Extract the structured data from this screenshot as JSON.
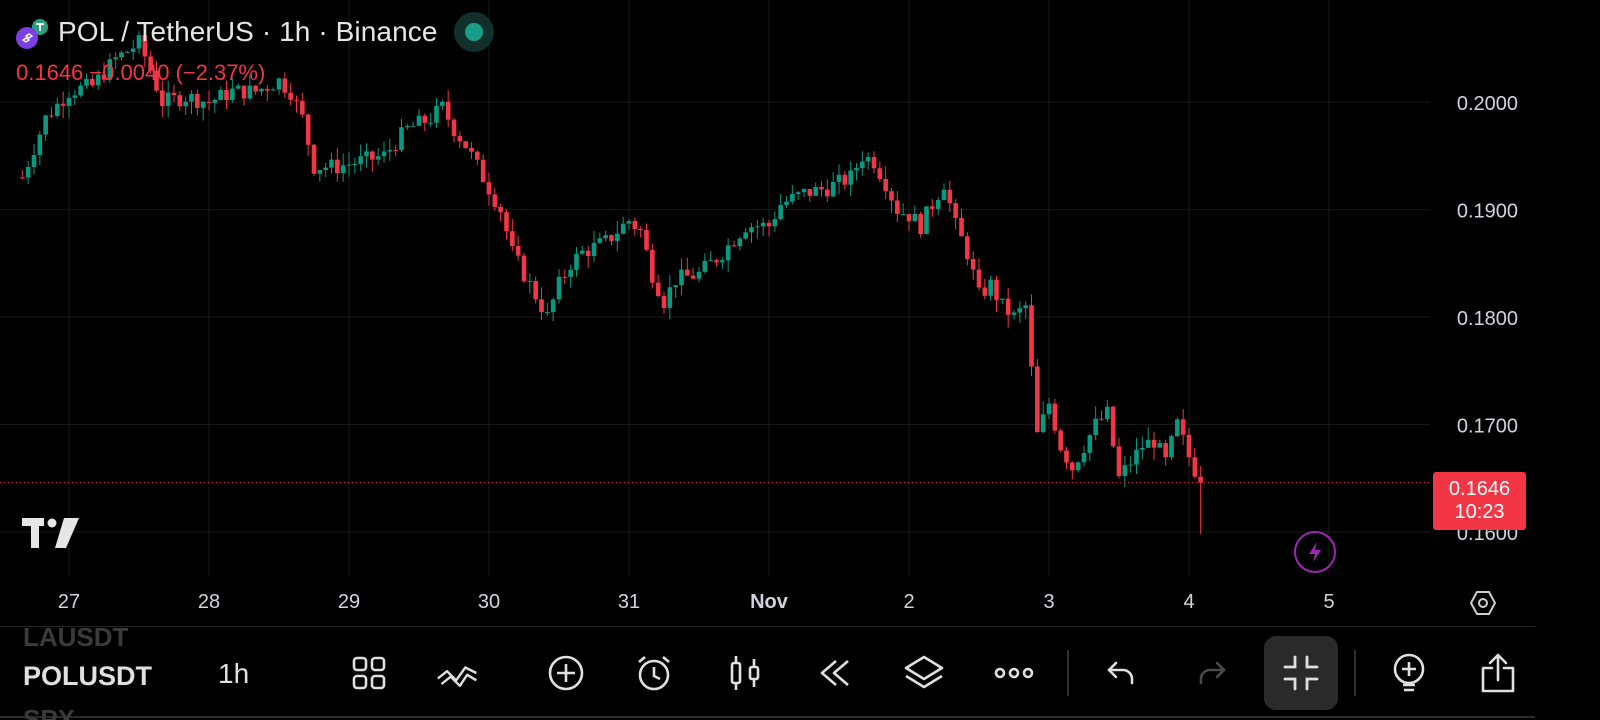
{
  "header": {
    "title": "POL / TetherUS · 1h · Binance",
    "live_status_icon": "live-dot-icon",
    "live_color": "#1a9e88"
  },
  "price_change": {
    "last": "0.1646",
    "change": "−0.0040",
    "change_pct": "(−2.37%)",
    "color": "#f23645"
  },
  "price_tag": {
    "price": "0.1646",
    "countdown": "10:23",
    "color": "#f23645"
  },
  "toolbar": {
    "symbol_prev": "LAUSDT",
    "symbol_current": "POLUSDT",
    "symbol_next": "SPX",
    "interval": "1h",
    "icons": [
      "grid-icon",
      "drawing-tools-icon",
      "add-indicator-icon",
      "alert-clock-icon",
      "candle-type-icon",
      "replay-icon",
      "layers-icon",
      "more-icon",
      "undo-icon",
      "redo-icon",
      "exit-fullscreen-icon",
      "idea-icon",
      "share-icon"
    ]
  },
  "chart_data": {
    "type": "candlestick",
    "symbol": "POLUSDT",
    "interval": "1h",
    "exchange": "Binance",
    "title": "POL / TetherUS · 1h · Binance",
    "x_ticks": [
      "27",
      "28",
      "29",
      "30",
      "31",
      "Nov",
      "2",
      "3",
      "4",
      "5"
    ],
    "y_ticks": [
      "0.2000",
      "0.1900",
      "0.1800",
      "0.1700",
      "0.1600"
    ],
    "y_range": [
      0.156,
      0.2095
    ],
    "last_price": 0.1646,
    "up_color": "#089981",
    "down_color": "#f23645",
    "grid": true,
    "close_path": [
      [
        0,
        0.193
      ],
      [
        4,
        0.1985
      ],
      [
        8,
        0.201
      ],
      [
        12,
        0.2015
      ],
      [
        16,
        0.204
      ],
      [
        20,
        0.2055
      ],
      [
        22,
        0.203
      ],
      [
        24,
        0.2
      ],
      [
        28,
        0.2005
      ],
      [
        32,
        0.2
      ],
      [
        36,
        0.201
      ],
      [
        40,
        0.201
      ],
      [
        44,
        0.202
      ],
      [
        46,
        0.201
      ],
      [
        48,
        0.1985
      ],
      [
        50,
        0.194
      ],
      [
        54,
        0.194
      ],
      [
        58,
        0.1945
      ],
      [
        62,
        0.195
      ],
      [
        66,
        0.1975
      ],
      [
        70,
        0.1985
      ],
      [
        72,
        0.1995
      ],
      [
        74,
        0.1975
      ],
      [
        76,
        0.196
      ],
      [
        78,
        0.194
      ],
      [
        80,
        0.192
      ],
      [
        82,
        0.19
      ],
      [
        84,
        0.186
      ],
      [
        86,
        0.184
      ],
      [
        88,
        0.182
      ],
      [
        90,
        0.18
      ],
      [
        92,
        0.183
      ],
      [
        94,
        0.185
      ],
      [
        96,
        0.186
      ],
      [
        100,
        0.187
      ],
      [
        104,
        0.189
      ],
      [
        106,
        0.188
      ],
      [
        108,
        0.184
      ],
      [
        110,
        0.1815
      ],
      [
        112,
        0.1835
      ],
      [
        116,
        0.184
      ],
      [
        120,
        0.186
      ],
      [
        124,
        0.1885
      ],
      [
        128,
        0.1885
      ],
      [
        130,
        0.1905
      ],
      [
        134,
        0.1915
      ],
      [
        138,
        0.192
      ],
      [
        142,
        0.193
      ],
      [
        144,
        0.195
      ],
      [
        146,
        0.1945
      ],
      [
        148,
        0.1925
      ],
      [
        150,
        0.19
      ],
      [
        152,
        0.1895
      ],
      [
        154,
        0.1885
      ],
      [
        156,
        0.1905
      ],
      [
        158,
        0.1925
      ],
      [
        160,
        0.1885
      ],
      [
        162,
        0.186
      ],
      [
        164,
        0.182
      ],
      [
        166,
        0.183
      ],
      [
        168,
        0.181
      ],
      [
        170,
        0.18
      ],
      [
        172,
        0.181
      ],
      [
        174,
        0.169
      ],
      [
        176,
        0.172
      ],
      [
        178,
        0.168
      ],
      [
        180,
        0.166
      ],
      [
        182,
        0.168
      ],
      [
        184,
        0.17
      ],
      [
        186,
        0.171
      ],
      [
        188,
        0.165
      ],
      [
        190,
        0.1665
      ],
      [
        192,
        0.168
      ],
      [
        194,
        0.1685
      ],
      [
        196,
        0.1665
      ],
      [
        198,
        0.17
      ],
      [
        200,
        0.167
      ],
      [
        202,
        0.1646
      ]
    ],
    "bars_total": 202
  }
}
